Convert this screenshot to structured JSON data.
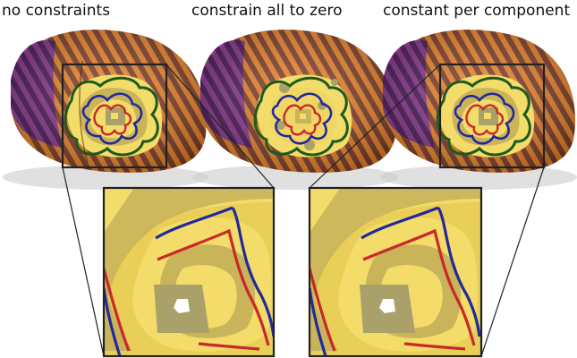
{
  "captions": {
    "left": "no constraints",
    "middle": "constrain all to zero",
    "right": "constant per component"
  },
  "colors": {
    "stripe_dark": "#7e3f2b",
    "stripe_orange": "#e8842b",
    "shell_purple": "#6a2a7a",
    "flat_yellow": "#f3dc6a",
    "flat_tan": "#a9a06a",
    "contour_green": "#1d5a1d",
    "contour_blue": "#22299a",
    "contour_red": "#c9282a",
    "frame": "#222222"
  }
}
